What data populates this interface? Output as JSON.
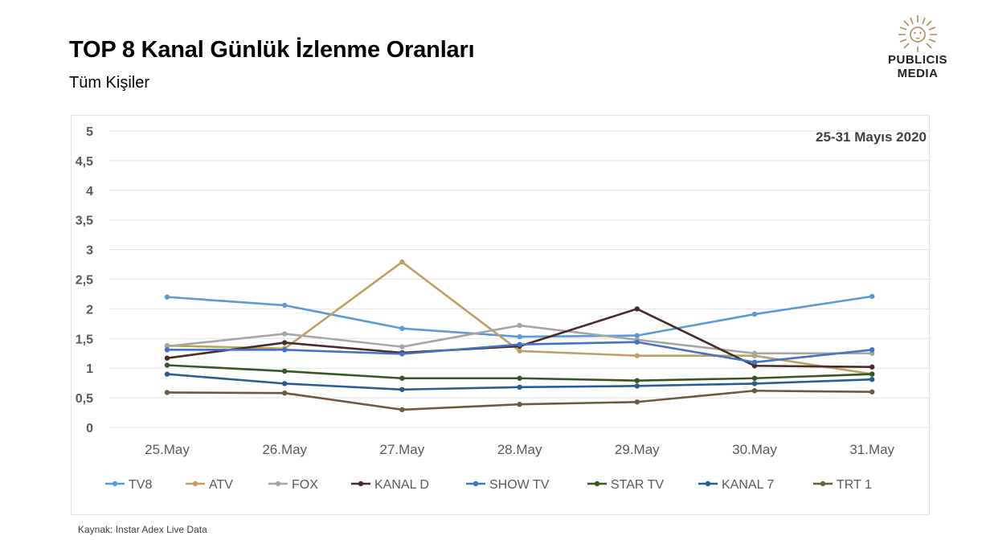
{
  "header": {
    "title": "TOP 8 Kanal Günlük İzlenme Oranları",
    "subtitle": "Tüm Kişiler"
  },
  "logo": {
    "line1": "PUBLICIS",
    "line2": "MEDIA",
    "color": "#b08a5e"
  },
  "source": "Kaynak: Instar  Adex Live Data",
  "chart_data": {
    "type": "line",
    "annotation": "25-31 Mayıs 2020",
    "categories": [
      "25.May",
      "26.May",
      "27.May",
      "28.May",
      "29.May",
      "30.May",
      "31.May"
    ],
    "ylim": [
      0,
      5
    ],
    "yticks": [
      "0",
      "0,5",
      "1",
      "1,5",
      "2",
      "2,5",
      "3",
      "3,5",
      "4",
      "4,5",
      "5"
    ],
    "grid": true,
    "legend_position": "bottom",
    "series": [
      {
        "name": "TV8",
        "color": "#5b9bd5",
        "values": [
          2.2,
          2.06,
          1.67,
          1.53,
          1.55,
          1.91,
          2.21
        ]
      },
      {
        "name": "ATV",
        "color": "#bf9f62",
        "values": [
          1.38,
          1.33,
          2.79,
          1.29,
          1.21,
          1.21,
          0.9
        ]
      },
      {
        "name": "FOX",
        "color": "#a5a5a5",
        "values": [
          1.37,
          1.58,
          1.36,
          1.72,
          1.48,
          1.25,
          1.25
        ]
      },
      {
        "name": "KANAL D",
        "color": "#4a2a2a",
        "values": [
          1.17,
          1.43,
          1.26,
          1.37,
          2.0,
          1.04,
          1.02
        ]
      },
      {
        "name": "SHOW TV",
        "color": "#4472c4",
        "values": [
          1.31,
          1.31,
          1.24,
          1.4,
          1.44,
          1.1,
          1.31
        ]
      },
      {
        "name": "STAR TV",
        "color": "#375623",
        "values": [
          1.05,
          0.95,
          0.83,
          0.83,
          0.79,
          0.83,
          0.9
        ]
      },
      {
        "name": "KANAL 7",
        "color": "#255e91",
        "values": [
          0.9,
          0.74,
          0.64,
          0.68,
          0.7,
          0.74,
          0.81
        ]
      },
      {
        "name": "TRT 1",
        "color": "#6e5a3a",
        "values": [
          0.59,
          0.58,
          0.3,
          0.39,
          0.43,
          0.62,
          0.6
        ]
      }
    ]
  }
}
